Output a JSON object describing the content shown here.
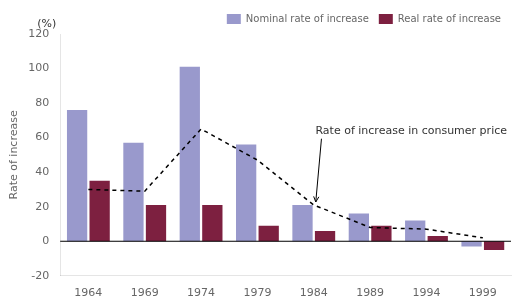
{
  "chart_data": {
    "type": "bar",
    "categories": [
      "1964",
      "1969",
      "1974",
      "1979",
      "1984",
      "1989",
      "1994",
      "1999"
    ],
    "series": [
      {
        "name": "Nominal rate of increase",
        "color": "#9999cc",
        "values": [
          76,
          57,
          101,
          56,
          21,
          16,
          12,
          -3
        ]
      },
      {
        "name": "Real rate of increase",
        "color": "#7d2040",
        "values": [
          35,
          21,
          21,
          9,
          6,
          9,
          3,
          -5
        ]
      },
      {
        "type": "line",
        "color": "#000000",
        "line_style": "dashed",
        "values": [
          30,
          29,
          65,
          47,
          21,
          8,
          7,
          2
        ]
      }
    ],
    "ylabel": "Rate of increase",
    "annotations": [
      {
        "text": "(%)"
      },
      {
        "text": "Rate of increase in consumer price",
        "x": "1984",
        "y": 21
      }
    ],
    "ylim": [
      -20,
      120
    ],
    "yticks": [
      -20,
      0,
      20,
      40,
      60,
      80,
      100,
      120
    ],
    "grid": false,
    "legend": "upper right"
  }
}
